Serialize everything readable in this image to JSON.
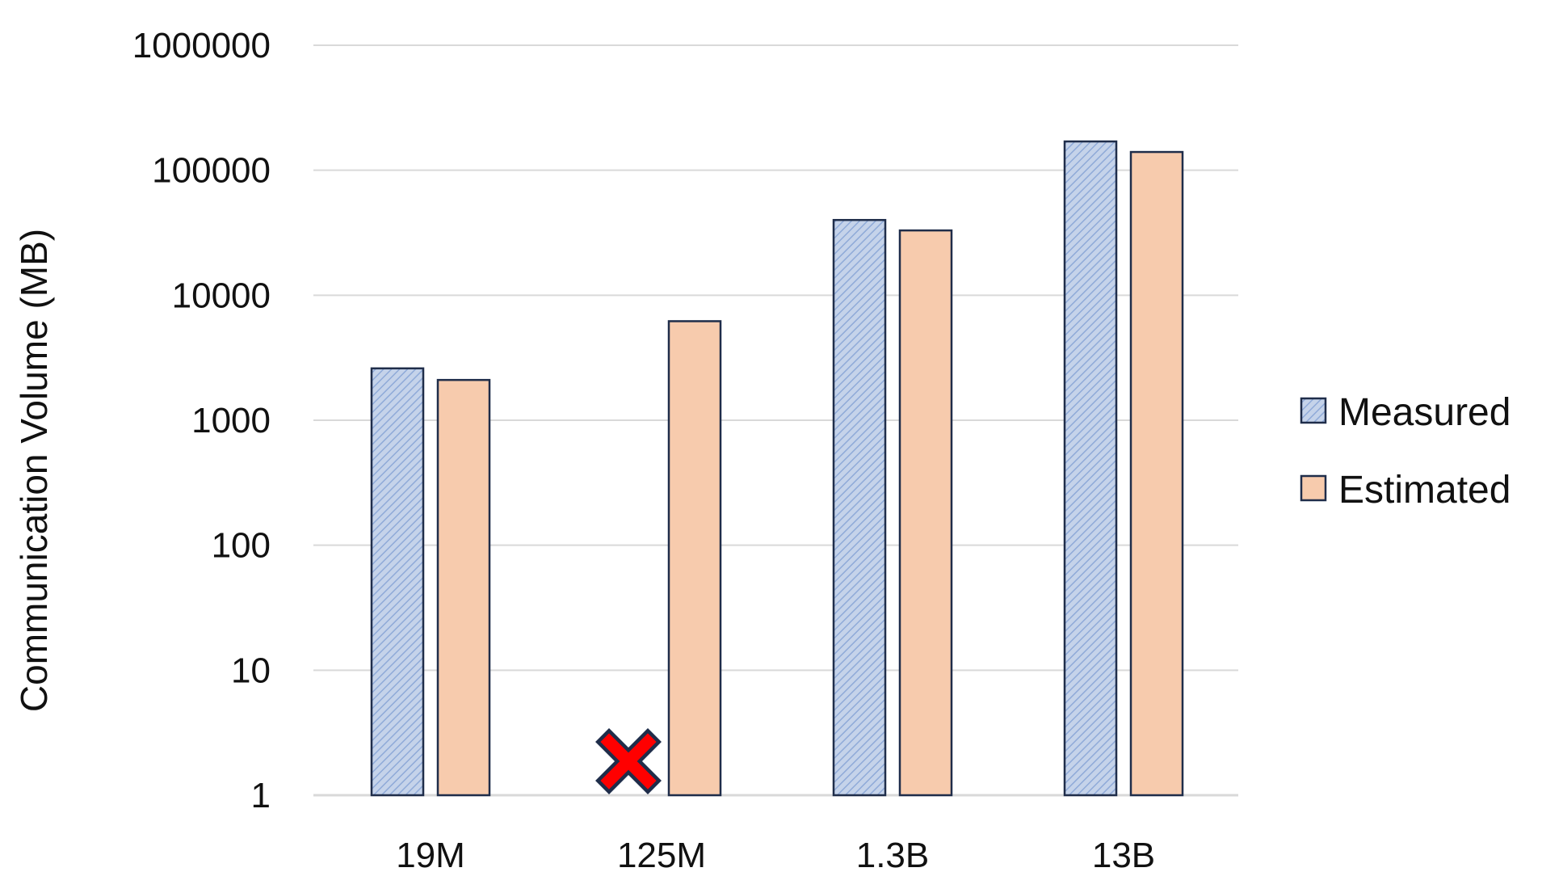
{
  "chart_data": {
    "type": "bar",
    "scale": "log",
    "categories": [
      "19M",
      "125M",
      "1.3B",
      "13B"
    ],
    "series": [
      {
        "name": "Measured",
        "values": [
          2600,
          null,
          40000,
          170000
        ]
      },
      {
        "name": "Estimated",
        "values": [
          2100,
          6200,
          33000,
          140000
        ]
      }
    ],
    "ylabel": "Communication Volume (MB)",
    "xlabel": "",
    "ylim": [
      1,
      1000000
    ],
    "yticks": [
      "1",
      "10",
      "100",
      "1000",
      "10000",
      "100000",
      "1000000"
    ],
    "grid": true,
    "legend_position": "right",
    "missing_markers": [
      {
        "category": "125M",
        "series": "Measured",
        "symbol": "red-x"
      }
    ],
    "colors": {
      "measured_fill": "#c5d3ea",
      "measured_hatch": "#8faad8",
      "estimated_fill": "#f7cbad",
      "bar_outline": "#1f2d4a",
      "grid": "#d9d9d9",
      "x_marker": "#ff0000"
    }
  }
}
